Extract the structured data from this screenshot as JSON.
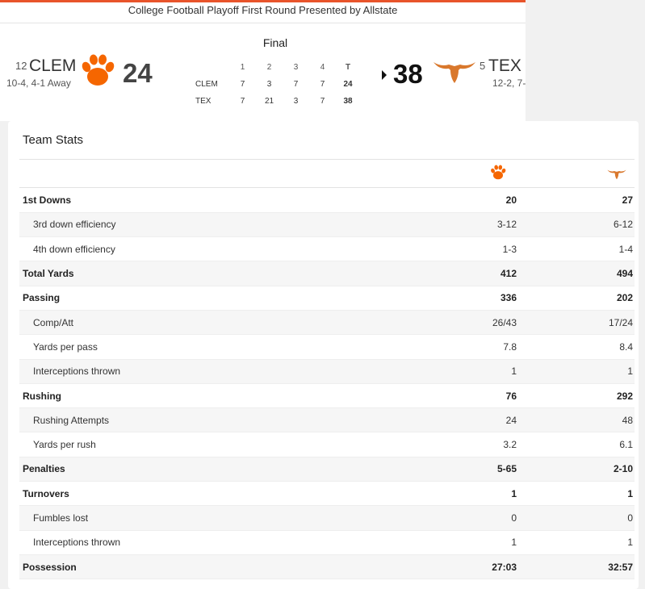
{
  "game_note": "College Football Playoff First Round Presented by Allstate",
  "status": "Final",
  "away": {
    "rank": "12",
    "abbr": "CLEM",
    "record": "10-4, 4-1 Away",
    "score": "24",
    "logo": "clemson-paw-logo",
    "color": "#f56600"
  },
  "home": {
    "rank": "5",
    "abbr": "TEX",
    "record": "12-2, 7-",
    "score": "38",
    "logo": "longhorn-logo",
    "color": "#d9782d"
  },
  "linescore": {
    "headers": [
      "1",
      "2",
      "3",
      "4",
      "T"
    ],
    "rows": [
      {
        "team": "CLEM",
        "q": [
          "7",
          "3",
          "7",
          "7"
        ],
        "total": "24"
      },
      {
        "team": "TEX",
        "q": [
          "7",
          "21",
          "3",
          "7"
        ],
        "total": "38"
      }
    ]
  },
  "team_stats": {
    "title": "Team Stats",
    "rows": [
      {
        "name": "1st Downs",
        "away": "20",
        "home": "27"
      },
      {
        "name": "3rd down efficiency",
        "away": "3-12",
        "home": "6-12"
      },
      {
        "name": "4th down efficiency",
        "away": "1-3",
        "home": "1-4"
      },
      {
        "name": "Total Yards",
        "away": "412",
        "home": "494"
      },
      {
        "name": "Passing",
        "away": "336",
        "home": "202"
      },
      {
        "name": "Comp/Att",
        "away": "26/43",
        "home": "17/24"
      },
      {
        "name": "Yards per pass",
        "away": "7.8",
        "home": "8.4"
      },
      {
        "name": "Interceptions thrown",
        "away": "1",
        "home": "1"
      },
      {
        "name": "Rushing",
        "away": "76",
        "home": "292"
      },
      {
        "name": "Rushing Attempts",
        "away": "24",
        "home": "48"
      },
      {
        "name": "Yards per rush",
        "away": "3.2",
        "home": "6.1"
      },
      {
        "name": "Penalties",
        "away": "5-65",
        "home": "2-10"
      },
      {
        "name": "Turnovers",
        "away": "1",
        "home": "1"
      },
      {
        "name": "Fumbles lost",
        "away": "0",
        "home": "0"
      },
      {
        "name": "Interceptions thrown",
        "away": "1",
        "home": "1"
      },
      {
        "name": "Possession",
        "away": "27:03",
        "home": "32:57"
      }
    ]
  }
}
